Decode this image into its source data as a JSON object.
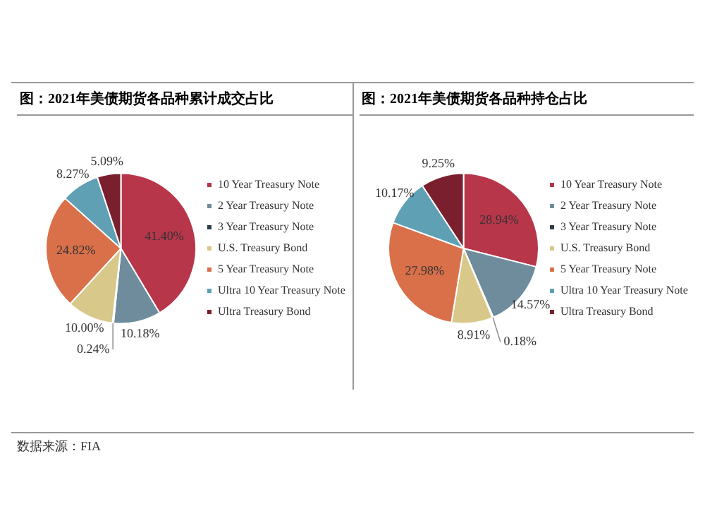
{
  "chart_data": [
    {
      "type": "pie",
      "title": "图：2021年美债期货各品种累计成交占比",
      "legend": "right",
      "categories": [
        "10 Year Treasury Note",
        "2 Year Treasury Note",
        "3 Year Treasury Note",
        "U.S. Treasury Bond",
        "5 Year Treasury Note",
        "Ultra 10 Year Treasury Note",
        "Ultra Treasury Bond"
      ],
      "values": [
        41.4,
        10.18,
        0.24,
        10.0,
        24.82,
        8.27,
        5.09
      ],
      "value_labels": [
        "41.40%",
        "10.18%",
        "0.24%",
        "10.00%",
        "24.82%",
        "8.27%",
        "5.09%"
      ],
      "colors": [
        "#b8364a",
        "#6e8c9c",
        "#2c3e4a",
        "#d8c88a",
        "#d9704a",
        "#5fa0b5",
        "#7a1f2e"
      ]
    },
    {
      "type": "pie",
      "title": "图：2021年美债期货各品种持仓占比",
      "legend": "right",
      "categories": [
        "10 Year Treasury Note",
        "2 Year Treasury Note",
        "3 Year Treasury Note",
        "U.S. Treasury Bond",
        "5 Year Treasury Note",
        "Ultra 10 Year Treasury Note",
        "Ultra Treasury Bond"
      ],
      "values": [
        28.94,
        14.57,
        0.18,
        8.91,
        27.98,
        10.17,
        9.25
      ],
      "value_labels": [
        "28.94%",
        "14.57%",
        "0.18%",
        "8.91%",
        "27.98%",
        "10.17%",
        "9.25%"
      ],
      "colors": [
        "#b8364a",
        "#6e8c9c",
        "#2c3e4a",
        "#d8c88a",
        "#d9704a",
        "#5fa0b5",
        "#7a1f2e"
      ],
      "annotations": [
        "数据来源：FIA"
      ]
    }
  ]
}
